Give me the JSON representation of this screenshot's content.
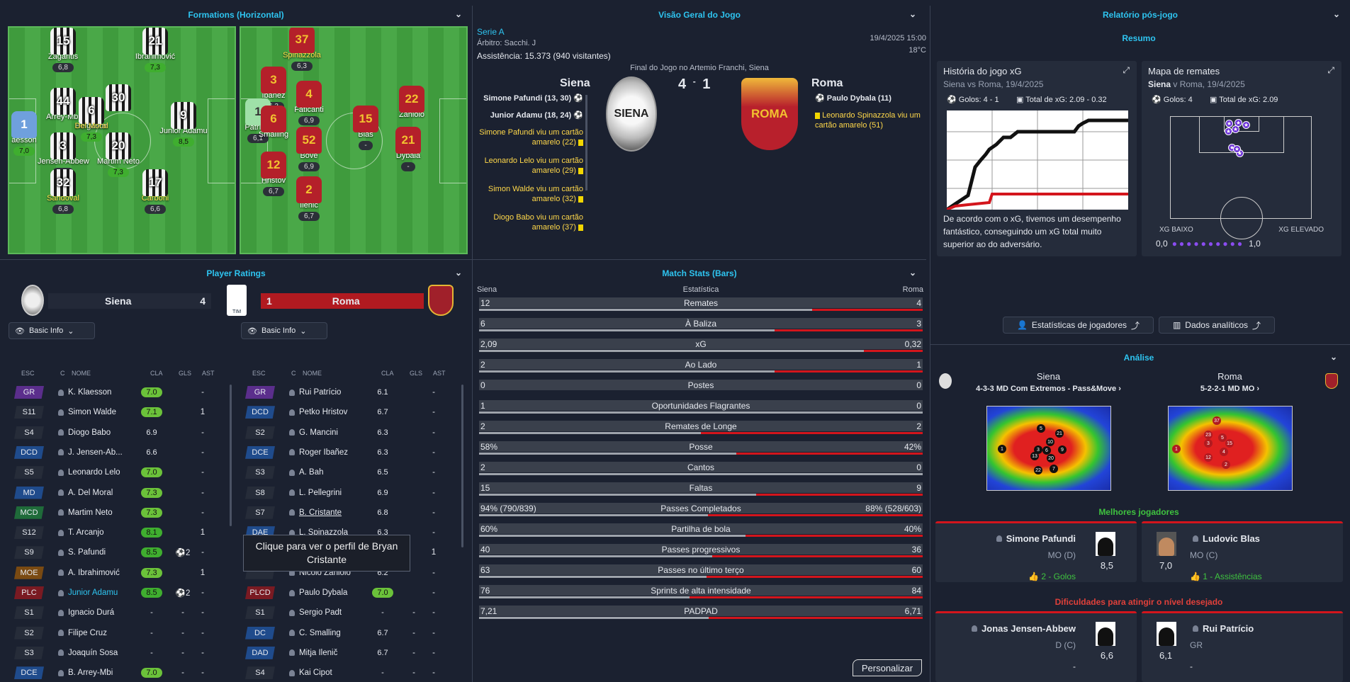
{
  "formations": {
    "title": "Formations (Horizontal)",
    "home": [
      {
        "num": "15",
        "name": "Zagaritis",
        "rating": "6,8",
        "kit": "siena"
      },
      {
        "num": "21",
        "name": "Ibrahimović",
        "rating": "7,3",
        "kit": "siena"
      },
      {
        "num": "44",
        "name": "Arrey-Mbi",
        "rating": "",
        "kit": "siena"
      },
      {
        "num": "6",
        "name": "Helgason",
        "rating": "",
        "kit": "siena"
      },
      {
        "num": "30",
        "name": "",
        "rating": "",
        "kit": "siena"
      },
      {
        "num": "1",
        "name": "aesson",
        "rating": "7,0",
        "kit": "gk1"
      },
      {
        "num": "3",
        "name": "Jensen-Abbew",
        "rating": "6,6",
        "kit": "siena"
      },
      {
        "num": "20",
        "name": "Martim Neto",
        "rating": "7,3",
        "kit": "siena"
      },
      {
        "num": "9",
        "name": "Junior Adamu",
        "rating": "8,5",
        "kit": "siena"
      },
      {
        "num": "32",
        "name": "Sandoval",
        "rating": "6,8",
        "kit": "siena"
      },
      {
        "num": "17",
        "name": "Carboni",
        "rating": "6,6",
        "kit": "siena"
      },
      {
        "num": "",
        "name": "Del Moral",
        "rating": "7,3",
        "kit": "siena"
      }
    ],
    "away": [
      {
        "num": "37",
        "name": "Spinazzola",
        "rating": "6,3",
        "kit": "roma"
      },
      {
        "num": "3",
        "name": "Ibañez",
        "rating": "6,3",
        "kit": "roma"
      },
      {
        "num": "4",
        "name": "Faticanti",
        "rating": "6,9",
        "kit": "roma"
      },
      {
        "num": "22",
        "name": "Zaniolo",
        "rating": "",
        "kit": "roma"
      },
      {
        "num": "1",
        "name": "Patrício",
        "rating": "6,1",
        "kit": "gk2"
      },
      {
        "num": "6",
        "name": "Smalling",
        "rating": "",
        "kit": "roma"
      },
      {
        "num": "15",
        "name": "Blas",
        "rating": "-",
        "kit": "roma"
      },
      {
        "num": "52",
        "name": "Bove",
        "rating": "6,9",
        "kit": "roma"
      },
      {
        "num": "21",
        "name": "Dybala",
        "rating": "-",
        "kit": "roma"
      },
      {
        "num": "12",
        "name": "Hristov",
        "rating": "6,7",
        "kit": "roma"
      },
      {
        "num": "2",
        "name": "Ilenič",
        "rating": "6,7",
        "kit": "roma"
      }
    ]
  },
  "ratings": {
    "title": "Player Ratings",
    "home_team": "Siena",
    "home_score": "4",
    "away_team": "Roma",
    "away_score": "1",
    "basic_info": "Basic Info",
    "cols": [
      "ESC",
      "C",
      "NOME",
      "CLA",
      "GLS",
      "AST"
    ],
    "home_rows": [
      {
        "pos": "GR",
        "posc": "#5b2e8c",
        "name": "K. Klaesson",
        "rate": "7.0",
        "rc": "g",
        "gls": "",
        "ast": "-"
      },
      {
        "pos": "S11",
        "posc": "#262c39",
        "name": "Simon Walde",
        "rate": "7.1",
        "rc": "g",
        "gls": "",
        "ast": "1"
      },
      {
        "pos": "S4",
        "posc": "#262c39",
        "name": "Diogo Babo",
        "rate": "6.9",
        "rc": "",
        "gls": "",
        "ast": "-"
      },
      {
        "pos": "DCD",
        "posc": "#1f4b8c",
        "name": "J. Jensen-Ab...",
        "rate": "6.6",
        "rc": "",
        "gls": "",
        "ast": "-"
      },
      {
        "pos": "S5",
        "posc": "#262c39",
        "name": "Leonardo Lelo",
        "rate": "7.0",
        "rc": "g",
        "gls": "",
        "ast": "-"
      },
      {
        "pos": "MD",
        "posc": "#1f4b8c",
        "name": "A. Del Moral",
        "rate": "7.3",
        "rc": "g",
        "gls": "",
        "ast": "-"
      },
      {
        "pos": "MCD",
        "posc": "#1f6b3a",
        "name": "Martim Neto",
        "rate": "7.3",
        "rc": "g",
        "gls": "",
        "ast": "-"
      },
      {
        "pos": "S12",
        "posc": "#262c39",
        "name": "T. Arcanjo",
        "rate": "8.1",
        "rc": "lg",
        "gls": "",
        "ast": "1"
      },
      {
        "pos": "S9",
        "posc": "#262c39",
        "name": "S. Pafundi",
        "rate": "8.5",
        "rc": "lg",
        "gls": "2",
        "ast": "-"
      },
      {
        "pos": "MOE",
        "posc": "#7a4a12",
        "name": "A. Ibrahimović",
        "rate": "7.3",
        "rc": "g",
        "gls": "",
        "ast": "1"
      },
      {
        "pos": "PLC",
        "posc": "#7a1a22",
        "name": "Junior Adamu",
        "rate": "8.5",
        "rc": "lg",
        "gls": "2",
        "ast": "-"
      },
      {
        "pos": "S1",
        "posc": "#262c39",
        "name": "Ignacio Durá",
        "rate": "-",
        "rc": "",
        "gls": "-",
        "ast": "-"
      },
      {
        "pos": "S2",
        "posc": "#262c39",
        "name": "Filipe Cruz",
        "rate": "-",
        "rc": "",
        "gls": "-",
        "ast": "-"
      },
      {
        "pos": "S3",
        "posc": "#262c39",
        "name": "Joaquín Sosa",
        "rate": "-",
        "rc": "",
        "gls": "-",
        "ast": "-"
      },
      {
        "pos": "DCE",
        "posc": "#1f4b8c",
        "name": "B. Arrey-Mbi",
        "rate": "7.0",
        "rc": "g",
        "gls": "-",
        "ast": "-"
      }
    ],
    "away_rows": [
      {
        "pos": "GR",
        "posc": "#5b2e8c",
        "name": "Rui Patrício",
        "rate": "6.1",
        "rc": "",
        "gls": "",
        "ast": "-"
      },
      {
        "pos": "DCD",
        "posc": "#1f4b8c",
        "name": "Petko Hristov",
        "rate": "6.7",
        "rc": "",
        "gls": "",
        "ast": "-"
      },
      {
        "pos": "S2",
        "posc": "#262c39",
        "name": "G. Mancini",
        "rate": "6.3",
        "rc": "",
        "gls": "",
        "ast": "-"
      },
      {
        "pos": "DCE",
        "posc": "#1f4b8c",
        "name": "Roger Ibañez",
        "rate": "6.3",
        "rc": "",
        "gls": "",
        "ast": "-"
      },
      {
        "pos": "S3",
        "posc": "#262c39",
        "name": "A. Bah",
        "rate": "6.5",
        "rc": "",
        "gls": "",
        "ast": "-"
      },
      {
        "pos": "S8",
        "posc": "#262c39",
        "name": "L. Pellegrini",
        "rate": "6.9",
        "rc": "",
        "gls": "",
        "ast": "-"
      },
      {
        "pos": "S7",
        "posc": "#262c39",
        "name": "B. Cristante",
        "rate": "6.8",
        "rc": "",
        "gls": "",
        "ast": "-"
      },
      {
        "pos": "DAE",
        "posc": "#1f4b8c",
        "name": "L. Spinazzola",
        "rate": "6.3",
        "rc": "",
        "gls": "",
        "ast": "-"
      },
      {
        "pos": "",
        "posc": "#262c39",
        "name": "",
        "rate": "",
        "rc": "",
        "gls": "",
        "ast": "1"
      },
      {
        "pos": "",
        "posc": "#262c39",
        "name": "Nicolò Zaniolo",
        "rate": "6.2",
        "rc": "",
        "gls": "",
        "ast": "-"
      },
      {
        "pos": "PLCD",
        "posc": "#7a1a22",
        "name": "Paulo Dybala",
        "rate": "7.0",
        "rc": "g",
        "gls": "",
        "ast": "-"
      },
      {
        "pos": "S1",
        "posc": "#262c39",
        "name": "Sergio Padt",
        "rate": "-",
        "rc": "",
        "gls": "-",
        "ast": "-"
      },
      {
        "pos": "DC",
        "posc": "#1f4b8c",
        "name": "C. Smalling",
        "rate": "6.7",
        "rc": "",
        "gls": "-",
        "ast": "-"
      },
      {
        "pos": "DAD",
        "posc": "#1f4b8c",
        "name": "Mitja Ilenič",
        "rate": "6.7",
        "rc": "",
        "gls": "-",
        "ast": "-"
      },
      {
        "pos": "S4",
        "posc": "#262c39",
        "name": "Kai Cipot",
        "rate": "-",
        "rc": "",
        "gls": "-",
        "ast": "-"
      }
    ],
    "tooltip": "Clique para ver o perfil de Bryan Cristante"
  },
  "overview": {
    "title": "Visão Geral do Jogo",
    "competition": "Serie A",
    "referee": "Árbitro: Sacchi. J",
    "attendance": "Assistência: 15.373 (940 visitantes)",
    "date": "19/4/2025 15:00",
    "temp": "18°C",
    "venue": "Final do Jogo no Artemio Franchi, Siena",
    "home": "Siena",
    "away": "Roma",
    "score_home": "4",
    "score_away": "1",
    "home_events": [
      {
        "text": "Simone Pafundi (13, 30)",
        "type": "goal"
      },
      {
        "text": "Junior Adamu (18, 24)",
        "type": "goal"
      },
      {
        "text": "Simone Pafundi viu um cartão amarelo (22)",
        "type": "card"
      },
      {
        "text": "Leonardo Lelo viu um cartão amarelo (29)",
        "type": "card"
      },
      {
        "text": "Simon Walde viu um cartão amarelo (32)",
        "type": "card"
      },
      {
        "text": "Diogo Babo viu um cartão amarelo (37)",
        "type": "card"
      }
    ],
    "away_events": [
      {
        "text": "Paulo Dybala (11)",
        "type": "goal"
      },
      {
        "text": "Leonardo Spinazzola viu um cartão amarelo (51)",
        "type": "card"
      }
    ]
  },
  "stats": {
    "title": "Match Stats (Bars)",
    "home": "Siena",
    "mid": "Estatística",
    "away": "Roma",
    "customize": "Personalizar",
    "rows": [
      {
        "label": "Remates",
        "h": "12",
        "a": "4",
        "hv": 12,
        "av": 4
      },
      {
        "label": "À Baliza",
        "h": "6",
        "a": "3",
        "hv": 6,
        "av": 3
      },
      {
        "label": "xG",
        "h": "2,09",
        "a": "0,32",
        "hv": 2.09,
        "av": 0.32
      },
      {
        "label": "Ao Lado",
        "h": "2",
        "a": "1",
        "hv": 2,
        "av": 1
      },
      {
        "label": "Postes",
        "h": "0",
        "a": "0",
        "hv": 0,
        "av": 0
      },
      {
        "label": "Oportunidades Flagrantes",
        "h": "1",
        "a": "0",
        "hv": 1,
        "av": 0
      },
      {
        "label": "Remates de Longe",
        "h": "2",
        "a": "2",
        "hv": 2,
        "av": 2
      },
      {
        "label": "Posse",
        "h": "58%",
        "a": "42%",
        "hv": 58,
        "av": 42
      },
      {
        "label": "Cantos",
        "h": "2",
        "a": "0",
        "hv": 2,
        "av": 0
      },
      {
        "label": "Faltas",
        "h": "15",
        "a": "9",
        "hv": 15,
        "av": 9
      },
      {
        "label": "Passes Completados",
        "h": "94% (790/839)",
        "a": "88% (528/603)",
        "hv": 94,
        "av": 88
      },
      {
        "label": "Partilha de bola",
        "h": "60%",
        "a": "40%",
        "hv": 60,
        "av": 40
      },
      {
        "label": "Passes progressivos",
        "h": "40",
        "a": "36",
        "hv": 40,
        "av": 36
      },
      {
        "label": "Passes no último terço",
        "h": "63",
        "a": "60",
        "hv": 63,
        "av": 60
      },
      {
        "label": "Sprints de alta intensidade",
        "h": "76",
        "a": "84",
        "hv": 76,
        "av": 84
      },
      {
        "label": "PADPAD",
        "h": "7,21",
        "a": "6,71",
        "hv": 7.21,
        "av": 6.71
      }
    ]
  },
  "report": {
    "title": "Relatório pós-jogo",
    "summary": "Resumo",
    "xg_title": "História do jogo xG",
    "xg_sub": "Siena vs Roma, 19/4/2025",
    "xg_goals": "Golos: 4 - 1",
    "xg_total": "Total de xG: 2.09 - 0.32",
    "xg_text": "De acordo com o xG, tivemos um desempenho fantástico, conseguindo um xG total muito superior ao do adversário.",
    "shots_title": "Mapa de remates",
    "shots_sub_team": "Siena",
    "shots_sub_rest": "v Roma, 19/4/2025",
    "shots_goals": "Golos: 4",
    "shots_total": "Total de xG: 2.09",
    "xg_low": "XG BAIXO",
    "xg_high": "XG ELEVADO",
    "scale_min": "0,0",
    "scale_max": "1,0",
    "btn_players": "Estatísticas de jogadores",
    "btn_data": "Dados analíticos",
    "analysis": "Análise",
    "home": "Siena",
    "home_form": "4-3-3 MD Com Extremos - Pass&Move",
    "away": "Roma",
    "away_form": "5-2-2-1 MD MO",
    "best": "Melhores jogadores",
    "best_home": {
      "name": "Simone Pafundi",
      "pos": "MO (D)",
      "rating": "8,5",
      "stat": "2 - Golos"
    },
    "best_away": {
      "name": "Ludovic Blas",
      "pos": "MO (C)",
      "rating": "7,0",
      "stat": "1 - Assistências"
    },
    "worst": "Dificuldades para atingir o nível desejado",
    "worst_home": {
      "name": "Jonas Jensen-Abbew",
      "pos": "D (C)",
      "rating": "6,6",
      "stat": "-"
    },
    "worst_away": {
      "name": "Rui Patrício",
      "pos": "GR",
      "rating": "6,1",
      "stat": "-"
    }
  }
}
